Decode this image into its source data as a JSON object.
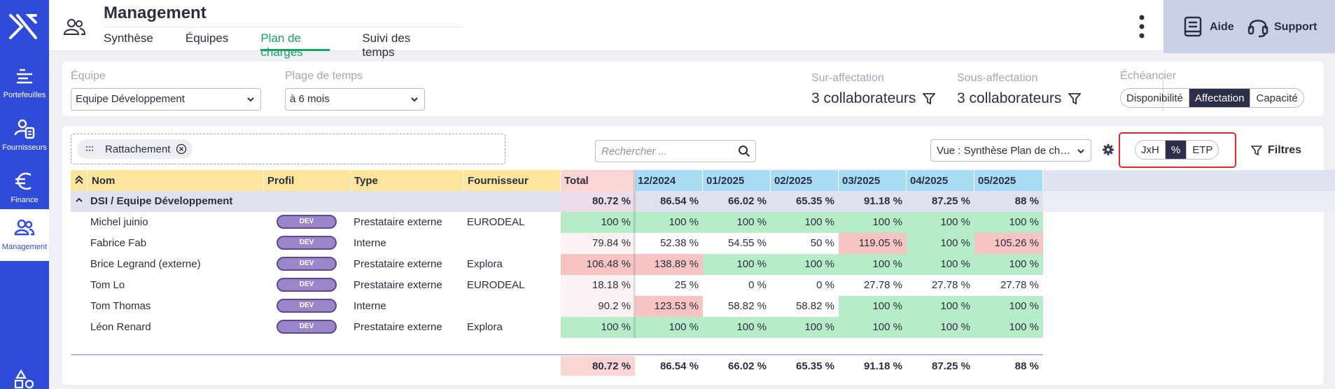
{
  "sidebar": {
    "items": [
      {
        "label": "Portefeuilles",
        "icon": "portfolio-icon"
      },
      {
        "label": "Fournisseurs",
        "icon": "suppliers-icon"
      },
      {
        "label": "Finance",
        "icon": "euro-icon"
      },
      {
        "label": "Management",
        "icon": "people-icon",
        "active": true
      }
    ]
  },
  "header": {
    "title": "Management",
    "tabs": [
      {
        "label": "Synthèse"
      },
      {
        "label": "Équipes"
      },
      {
        "label": "Plan de charges",
        "active": true
      },
      {
        "label": "Suivi des temps"
      }
    ],
    "help_label": "Aide",
    "support_label": "Support"
  },
  "filters": {
    "team_label": "Équipe",
    "team_value": "Equipe Développement",
    "range_label": "Plage de temps",
    "range_value": "à 6 mois",
    "over_label": "Sur-affectation",
    "over_value": "3 collaborateurs",
    "under_label": "Sous-affectation",
    "under_value": "3 collaborateurs",
    "schedule_label": "Échéancier",
    "schedule_options": [
      "Disponibilité",
      "Affectation",
      "Capacité"
    ],
    "schedule_selected": "Affectation"
  },
  "toolbar": {
    "chip_label": "Rattachement",
    "search_placeholder": "Rechercher ...",
    "view_value": "Vue : Synthèse Plan de charges",
    "unit_options": [
      "JxH",
      "%",
      "ETP"
    ],
    "unit_selected": "%",
    "filters_label": "Filtres"
  },
  "colors": {
    "accent": "#2f4bd8",
    "active_tab": "#19a260",
    "over": "#f7c4c4",
    "ok": "#b7ecc9",
    "header": "#fde59c",
    "month_header": "#a7dcf4"
  },
  "table": {
    "columns": [
      "Nom",
      "Profil",
      "Type",
      "Fournisseur",
      "Total",
      "12/2024",
      "01/2025",
      "02/2025",
      "03/2025",
      "04/2025",
      "05/2025"
    ],
    "group": {
      "label": "DSI / Equipe Développement",
      "total": "80.72 %",
      "months": [
        "86.54 %",
        "66.02 %",
        "65.35 %",
        "91.18 %",
        "87.25 %",
        "88 %"
      ]
    },
    "rows": [
      {
        "name": "Michel juinio",
        "profile": "DEV",
        "type": "Prestataire externe",
        "supplier": "EURODEAL",
        "total": "100 %",
        "months": [
          "100 %",
          "100 %",
          "100 %",
          "100 %",
          "100 %",
          "100 %"
        ]
      },
      {
        "name": "Fabrice Fab",
        "profile": "DEV",
        "type": "Interne",
        "supplier": "",
        "total": "79.84 %",
        "months": [
          "52.38 %",
          "54.55 %",
          "50 %",
          "119.05 %",
          "100 %",
          "105.26 %"
        ]
      },
      {
        "name": "Brice Legrand (externe)",
        "profile": "DEV",
        "type": "Prestataire externe",
        "supplier": "Explora",
        "total": "106.48 %",
        "months": [
          "138.89 %",
          "100 %",
          "100 %",
          "100 %",
          "100 %",
          "100 %"
        ]
      },
      {
        "name": "Tom Lo",
        "profile": "DEV",
        "type": "Prestataire externe",
        "supplier": "EURODEAL",
        "total": "18.18 %",
        "months": [
          "25 %",
          "0 %",
          "0 %",
          "27.78 %",
          "27.78 %",
          "27.78 %"
        ]
      },
      {
        "name": "Tom Thomas",
        "profile": "DEV",
        "type": "Interne",
        "supplier": "",
        "total": "90.2 %",
        "months": [
          "123.53 %",
          "58.82 %",
          "58.82 %",
          "100 %",
          "100 %",
          "100 %"
        ]
      },
      {
        "name": "Léon Renard",
        "profile": "DEV",
        "type": "Prestataire externe",
        "supplier": "Explora",
        "total": "100 %",
        "months": [
          "100 %",
          "100 %",
          "100 %",
          "100 %",
          "100 %",
          "100 %"
        ]
      }
    ],
    "footer": {
      "total": "80.72 %",
      "months": [
        "86.54 %",
        "66.02 %",
        "65.35 %",
        "91.18 %",
        "87.25 %",
        "88 %"
      ]
    }
  }
}
